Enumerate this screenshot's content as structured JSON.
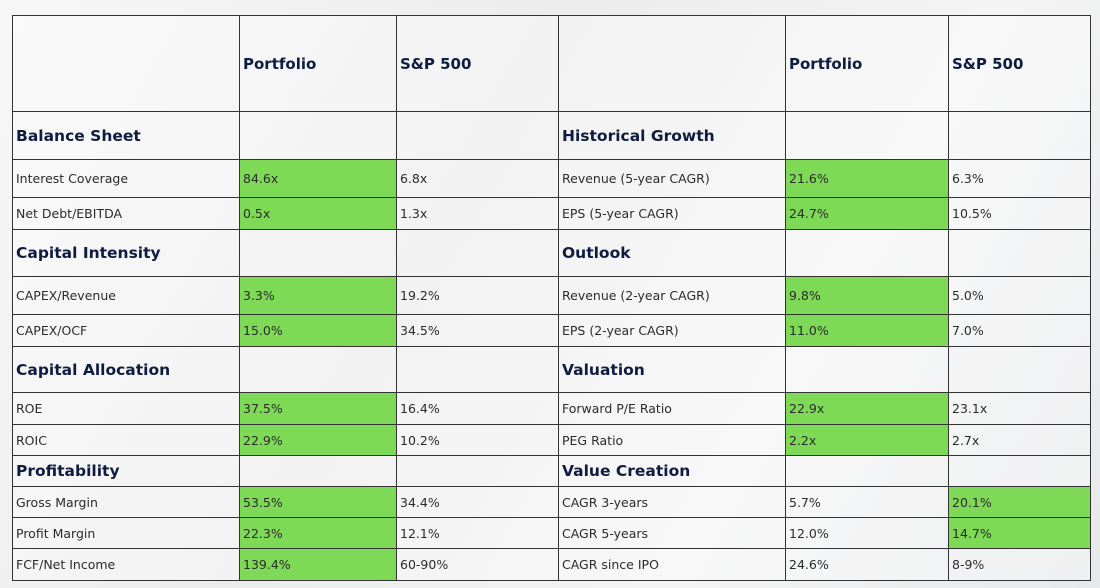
{
  "table": {
    "header": [
      "Portfolio",
      "S&P 500",
      "Portfolio",
      "S&P 500"
    ],
    "rows": [
      {
        "left": {
          "section": "Balance Sheet"
        },
        "right": {
          "section": "Historical Growth"
        }
      },
      {
        "left": {
          "label": "Interest Coverage",
          "portfolio": "84.6x",
          "sp500": "6.8x",
          "highlight": 0
        },
        "right": {
          "label": "Revenue (5-year CAGR)",
          "portfolio": "21.6%",
          "sp500": "6.3%",
          "highlight": 0
        }
      },
      {
        "left": {
          "label": "Net Debt/EBITDA",
          "portfolio": "0.5x",
          "sp500": "1.3x",
          "highlight": 0
        },
        "right": {
          "label": "EPS (5-year CAGR)",
          "portfolio": "24.7%",
          "sp500": "10.5%",
          "highlight": 0
        }
      },
      {
        "left": {
          "section": "Capital Intensity"
        },
        "right": {
          "section": "Outlook"
        }
      },
      {
        "left": {
          "label": "CAPEX/Revenue",
          "portfolio": "3.3%",
          "sp500": "19.2%",
          "highlight": 0
        },
        "right": {
          "label": "Revenue (2-year CAGR)",
          "portfolio": "9.8%",
          "sp500": "5.0%",
          "highlight": 0
        }
      },
      {
        "left": {
          "label": "CAPEX/OCF",
          "portfolio": "15.0%",
          "sp500": "34.5%",
          "highlight": 0
        },
        "right": {
          "label": "EPS (2-year CAGR)",
          "portfolio": "11.0%",
          "sp500": "7.0%",
          "highlight": 0
        }
      },
      {
        "left": {
          "section": "Capital Allocation"
        },
        "right": {
          "section": "Valuation"
        }
      },
      {
        "left": {
          "label": "ROE",
          "portfolio": "37.5%",
          "sp500": "16.4%",
          "highlight": 0
        },
        "right": {
          "label": "Forward P/E Ratio",
          "portfolio": "22.9x",
          "sp500": "23.1x",
          "highlight": 0
        }
      },
      {
        "left": {
          "label": "ROIC",
          "portfolio": "22.9%",
          "sp500": "10.2%",
          "highlight": 0
        },
        "right": {
          "label": "PEG Ratio",
          "portfolio": "2.2x",
          "sp500": "2.7x",
          "highlight": 0
        }
      },
      {
        "left": {
          "section": "Profitability"
        },
        "right": {
          "section": "Value Creation"
        }
      },
      {
        "left": {
          "label": "Gross Margin",
          "portfolio": "53.5%",
          "sp500": "34.4%",
          "highlight": 0
        },
        "right": {
          "label": "CAGR 3-years",
          "portfolio": "5.7%",
          "sp500": "20.1%",
          "highlight": 1
        }
      },
      {
        "left": {
          "label": "Profit Margin",
          "portfolio": "22.3%",
          "sp500": "12.1%",
          "highlight": 0
        },
        "right": {
          "label": "CAGR 5-years",
          "portfolio": "12.0%",
          "sp500": "14.7%",
          "highlight": 1
        }
      },
      {
        "left": {
          "label": "FCF/Net Income",
          "portfolio": "139.4%",
          "sp500": "60-90%",
          "highlight": 0
        },
        "right": {
          "label": "CAGR since IPO",
          "portfolio": "24.6%",
          "sp500": "8-9%",
          "highlight": null
        }
      }
    ]
  }
}
